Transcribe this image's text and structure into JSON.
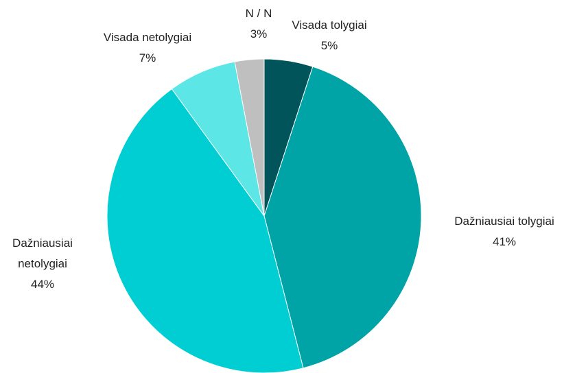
{
  "chart_data": {
    "type": "pie",
    "categories": [
      "Visada tolygiai",
      "Dažniausiai tolygiai",
      "Dažniausiai netolygiai",
      "Visada netolygiai",
      "N / N"
    ],
    "values": [
      5,
      41,
      44,
      7,
      3
    ],
    "value_labels": [
      "5%",
      "41%",
      "44%",
      "7%",
      "3%"
    ],
    "colors": [
      "#00545a",
      "#00a3a6",
      "#00ced2",
      "#5ce6e6",
      "#bfbfbf"
    ]
  }
}
